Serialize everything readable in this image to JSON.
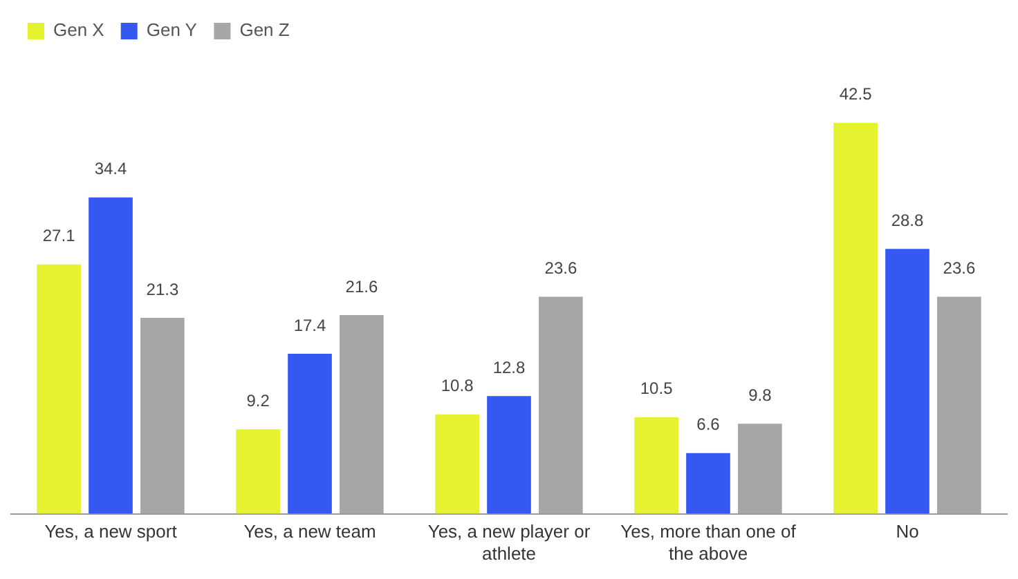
{
  "chart_data": {
    "type": "bar",
    "categories": [
      "Yes, a new sport",
      "Yes, a new team",
      "Yes, a new player or athlete",
      "Yes, more than one of the above",
      "No"
    ],
    "series": [
      {
        "name": "Gen X",
        "color": "#e5f230",
        "values": [
          27.1,
          9.2,
          10.8,
          10.5,
          42.5
        ]
      },
      {
        "name": "Gen Y",
        "color": "#3557f2",
        "values": [
          34.4,
          17.4,
          12.8,
          6.6,
          28.8
        ]
      },
      {
        "name": "Gen Z",
        "color": "#a6a6a6",
        "values": [
          21.3,
          21.6,
          23.6,
          9.8,
          23.6
        ]
      }
    ],
    "data_labels": true,
    "legend": "top left",
    "grid": false
  }
}
